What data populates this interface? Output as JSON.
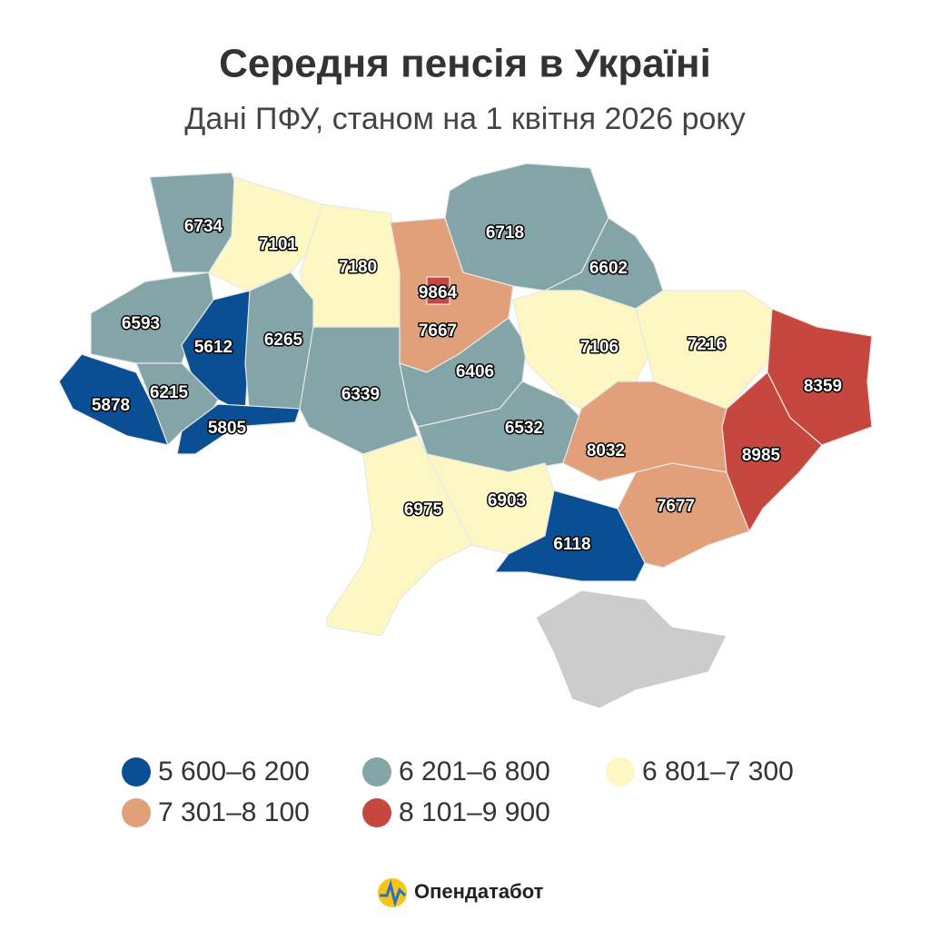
{
  "title": "Середня пенсія в Україні",
  "subtitle": "Дані ПФУ, станом на 1 квітня 2026 року",
  "regions": [
    {
      "value": 6734,
      "color": "#84a5a8"
    },
    {
      "value": 7101,
      "color": "#fdf7c3"
    },
    {
      "value": 7180,
      "color": "#fdf7c3"
    },
    {
      "value": 7667,
      "color": "#e2a07a"
    },
    {
      "value": 9864,
      "color": "#c5473d"
    },
    {
      "value": 6718,
      "color": "#84a5a8"
    },
    {
      "value": 6602,
      "color": "#84a5a8"
    },
    {
      "value": 6593,
      "color": "#84a5a8"
    },
    {
      "value": 5612,
      "color": "#0a4f94"
    },
    {
      "value": 6265,
      "color": "#84a5a8"
    },
    {
      "value": 5878,
      "color": "#0a4f94"
    },
    {
      "value": 6215,
      "color": "#84a5a8"
    },
    {
      "value": 5805,
      "color": "#0a4f94"
    },
    {
      "value": 6339,
      "color": "#84a5a8"
    },
    {
      "value": 6406,
      "color": "#84a5a8"
    },
    {
      "value": 6532,
      "color": "#84a5a8"
    },
    {
      "value": 7106,
      "color": "#fdf7c3"
    },
    {
      "value": 7216,
      "color": "#fdf7c3"
    },
    {
      "value": 8359,
      "color": "#c5473d"
    },
    {
      "value": 8985,
      "color": "#c5473d"
    },
    {
      "value": 8032,
      "color": "#e2a07a"
    },
    {
      "value": 7677,
      "color": "#e2a07a"
    },
    {
      "value": 6903,
      "color": "#fdf7c3"
    },
    {
      "value": 6975,
      "color": "#fdf7c3"
    },
    {
      "value": 6118,
      "color": "#0a4f94"
    }
  ],
  "legend": [
    {
      "label": "5 600–6 200",
      "color": "#0a4f94"
    },
    {
      "label": "6 201–6 800",
      "color": "#84a5a8"
    },
    {
      "label": "6 801–7 300",
      "color": "#fdf7c3"
    },
    {
      "label": "7 301–8 100",
      "color": "#e2a07a"
    },
    {
      "label": "8 101–9 900",
      "color": "#c5473d"
    }
  ],
  "logo": "Опендатабот"
}
